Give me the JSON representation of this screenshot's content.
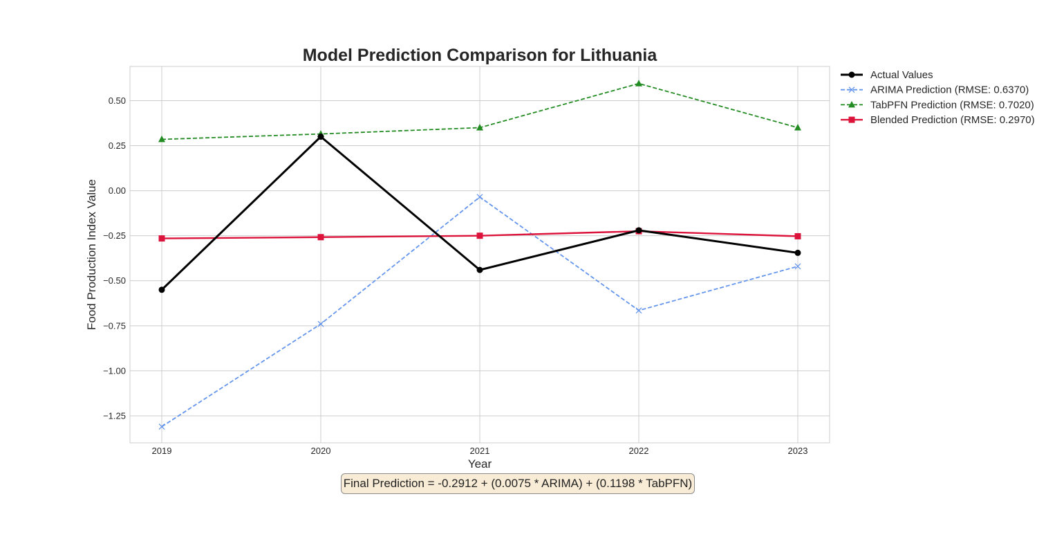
{
  "chart_data": {
    "type": "line",
    "title": "Model Prediction Comparison for Lithuania",
    "xlabel": "Year",
    "ylabel": "Food Production Index Value",
    "x": [
      2019,
      2020,
      2021,
      2022,
      2023
    ],
    "xlim": [
      2018.8,
      2023.2
    ],
    "ylim": [
      -1.4,
      0.69
    ],
    "xticks": [
      "2019",
      "2020",
      "2021",
      "2022",
      "2023"
    ],
    "yticks": [
      {
        "value": 0.5,
        "label": "0.50"
      },
      {
        "value": 0.25,
        "label": "0.25"
      },
      {
        "value": 0.0,
        "label": "0.00"
      },
      {
        "value": -0.25,
        "label": "−0.25"
      },
      {
        "value": -0.5,
        "label": "−0.50"
      },
      {
        "value": -0.75,
        "label": "−0.75"
      },
      {
        "value": -1.0,
        "label": "−1.00"
      },
      {
        "value": -1.25,
        "label": "−1.25"
      }
    ],
    "grid": true,
    "legend_position": "outside-top-right",
    "series": [
      {
        "name": "Actual Values",
        "values": [
          -0.55,
          0.3,
          -0.44,
          -0.22,
          -0.345
        ],
        "color": "#000000",
        "marker": "circle",
        "dashed": false
      },
      {
        "name": "ARIMA Prediction (RMSE: 0.6370)",
        "values": [
          -1.31,
          -0.74,
          -0.035,
          -0.665,
          -0.42
        ],
        "color": "#6495ed",
        "marker": "x",
        "dashed": true
      },
      {
        "name": "TabPFN Prediction (RMSE: 0.7020)",
        "values": [
          0.285,
          0.315,
          0.35,
          0.595,
          0.35
        ],
        "color": "#228b22",
        "marker": "triangle",
        "dashed": true
      },
      {
        "name": "Blended Prediction (RMSE: 0.2970)",
        "values": [
          -0.265,
          -0.258,
          -0.25,
          -0.225,
          -0.253
        ],
        "color": "#dc143c",
        "marker": "square",
        "dashed": false
      }
    ],
    "annotation": "Final Prediction = -0.2912 + (0.0075 * ARIMA) + (0.1198 * TabPFN)"
  }
}
